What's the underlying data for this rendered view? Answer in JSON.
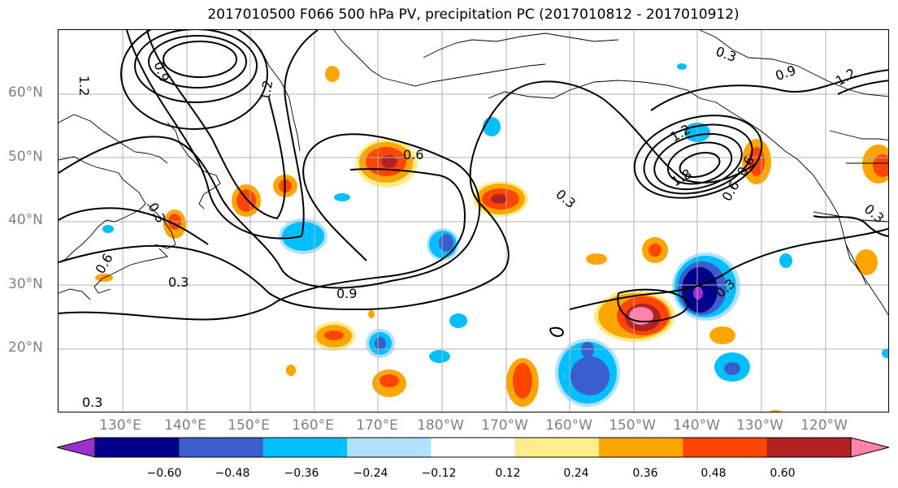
{
  "title": "2017010500 F066 500 hPa PV, precipitation PC (2017010812 - 2017010912)",
  "lat_labels": [
    "60°N",
    "50°N",
    "40°N",
    "30°N",
    "20°N"
  ],
  "lon_labels": [
    "130°E",
    "140°E",
    "150°E",
    "160°E",
    "170°E",
    "180°W",
    "170°W",
    "160°W",
    "150°W",
    "140°W",
    "130°W",
    "120°W"
  ],
  "contour_labels": [
    "1.2",
    "0.9",
    "0.3",
    "0.6",
    "1.2",
    "0.3",
    "0.6",
    "1.8",
    "0.9",
    "1.2",
    "1.2",
    "0.3",
    "0.3",
    "0.3",
    "0.9",
    "0.6",
    "0.6",
    "0.3",
    "0.3"
  ],
  "colorbar": {
    "ticks": [
      "−0.60",
      "−0.48",
      "−0.36",
      "−0.24",
      "−0.12",
      "0.12",
      "0.24",
      "0.36",
      "0.48",
      "0.60"
    ],
    "colors": [
      "#9932cc",
      "#00008b",
      "#3a5fcd",
      "#00bfff",
      "#b0e2ff",
      "#ffffff",
      "#ffec8b",
      "#ffa500",
      "#ff4500",
      "#b22222",
      "#ff82ab"
    ]
  }
}
